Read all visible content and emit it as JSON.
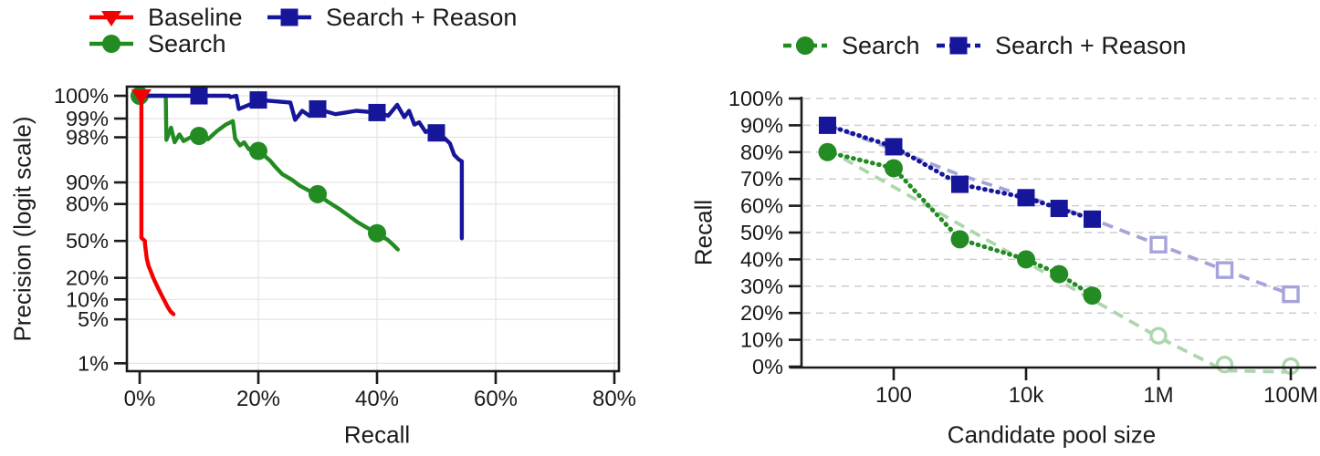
{
  "colors": {
    "baseline_red": "#f40000",
    "search_green": "#228b22",
    "reason_navy": "#16169a",
    "faded_navy": "#a4a4da",
    "faded_green": "#aed6ae",
    "grid_solid": "#e4e4e4",
    "grid_dashed": "#cdcdcd",
    "ink": "#1a1a1a"
  },
  "chart_data": [
    {
      "id": "precision-recall",
      "type": "line",
      "title": "",
      "xlabel": "Recall",
      "ylabel": "Precision (logit scale)",
      "x_scale": "linear",
      "y_scale": "logit",
      "xlim": [
        -2,
        81
      ],
      "ylim_percent": [
        1,
        100
      ],
      "grid": true,
      "x_ticks": [
        {
          "v": 0,
          "label": "0%"
        },
        {
          "v": 20,
          "label": "20%"
        },
        {
          "v": 40,
          "label": "40%"
        },
        {
          "v": 60,
          "label": "60%"
        },
        {
          "v": 80,
          "label": "80%"
        }
      ],
      "y_ticks": [
        {
          "v": 100,
          "label": "100%"
        },
        {
          "v": 99,
          "label": "99%"
        },
        {
          "v": 98,
          "label": "98%"
        },
        {
          "v": 90,
          "label": "90%"
        },
        {
          "v": 80,
          "label": "80%"
        },
        {
          "v": 50,
          "label": "50%"
        },
        {
          "v": 20,
          "label": "20%"
        },
        {
          "v": 10,
          "label": "10%"
        },
        {
          "v": 5,
          "label": "5%"
        },
        {
          "v": 1,
          "label": "1%"
        }
      ],
      "legend": {
        "position": "upper-left-outside",
        "entries": [
          {
            "label": "Baseline",
            "color": "baseline_red",
            "marker": "triangle-down",
            "line": "solid"
          },
          {
            "label": "Search + Reason",
            "color": "reason_navy",
            "marker": "square",
            "line": "solid"
          },
          {
            "label": "Search",
            "color": "search_green",
            "marker": "circle",
            "line": "solid"
          }
        ]
      },
      "series": [
        {
          "name": "Search",
          "color": "search_green",
          "line": "solid",
          "marker": "circle",
          "points": [
            [
              0,
              100
            ],
            [
              4.4,
              100
            ],
            [
              4.5,
              97.8
            ],
            [
              5.3,
              98.6
            ],
            [
              5.9,
              97.6
            ],
            [
              6.7,
              98.2
            ],
            [
              7.4,
              97.7
            ],
            [
              8.6,
              98.0
            ],
            [
              10,
              98.1
            ],
            [
              11.5,
              97.85
            ],
            [
              13,
              98.4
            ],
            [
              14.5,
              98.75
            ],
            [
              15.7,
              98.9
            ],
            [
              16.1,
              97.9
            ],
            [
              16.9,
              97.3
            ],
            [
              17.6,
              97.6
            ],
            [
              18.4,
              96.9
            ],
            [
              19.2,
              97.1
            ],
            [
              20,
              96.7
            ],
            [
              21,
              96.1
            ],
            [
              22,
              95.3
            ],
            [
              22.7,
              94.4
            ],
            [
              24,
              92.5
            ],
            [
              25.7,
              90.8
            ],
            [
              27,
              88.8
            ],
            [
              28.5,
              86.9
            ],
            [
              30,
              85.3
            ],
            [
              31.5,
              81.8
            ],
            [
              33.4,
              77.5
            ],
            [
              35,
              72.8
            ],
            [
              36.6,
              67.3
            ],
            [
              38.2,
              62.5
            ],
            [
              40,
              57.2
            ],
            [
              41.8,
              51
            ],
            [
              42.8,
              46
            ],
            [
              43.5,
              42
            ]
          ],
          "marker_points": [
            [
              0,
              100
            ],
            [
              10,
              98.1
            ],
            [
              20,
              96.7
            ],
            [
              30,
              85.3
            ],
            [
              40,
              57.2
            ]
          ]
        },
        {
          "name": "Search + Reason",
          "color": "reason_navy",
          "line": "solid",
          "marker": "square",
          "points": [
            [
              0,
              100
            ],
            [
              15.1,
              100
            ],
            [
              15.3,
              99.55
            ],
            [
              16.3,
              99.65
            ],
            [
              16.7,
              99.3
            ],
            [
              19.4,
              99.45
            ],
            [
              20,
              99.5
            ],
            [
              25.4,
              99.45
            ],
            [
              26.2,
              98.95
            ],
            [
              27.4,
              99.25
            ],
            [
              28.6,
              99.1
            ],
            [
              30,
              99.3
            ],
            [
              33,
              99.15
            ],
            [
              36.5,
              99.25
            ],
            [
              40,
              99.2
            ],
            [
              41.9,
              99.1
            ],
            [
              43.4,
              99.4
            ],
            [
              44.6,
              99.05
            ],
            [
              45.4,
              99.25
            ],
            [
              46.3,
              98.75
            ],
            [
              47.1,
              98.85
            ],
            [
              48.2,
              98.35
            ],
            [
              49,
              98.5
            ],
            [
              50,
              98.3
            ],
            [
              51.2,
              98.0
            ],
            [
              52.3,
              97.5
            ],
            [
              53,
              96.2
            ],
            [
              53.8,
              95.5
            ],
            [
              54.3,
              95.2
            ],
            [
              54.3,
              52.5
            ]
          ],
          "marker_points": [
            [
              10,
              100
            ],
            [
              20,
              99.5
            ],
            [
              30,
              99.3
            ],
            [
              40,
              99.2
            ],
            [
              50,
              98.3
            ]
          ]
        },
        {
          "name": "Baseline",
          "color": "baseline_red",
          "line": "solid",
          "marker": "triangle-down",
          "points": [
            [
              0.3,
              100
            ],
            [
              0.3,
              53
            ],
            [
              0.9,
              50
            ],
            [
              0.9,
              47
            ],
            [
              1.2,
              34
            ],
            [
              1.5,
              28
            ],
            [
              1.9,
              24
            ],
            [
              2.3,
              20
            ],
            [
              2.7,
              17
            ],
            [
              3.2,
              14
            ],
            [
              3.7,
              11.5
            ],
            [
              4.2,
              9.5
            ],
            [
              4.7,
              7.8
            ],
            [
              5.2,
              6.6
            ],
            [
              5.7,
              6
            ]
          ],
          "marker_points": [
            [
              0.3,
              100
            ]
          ]
        }
      ]
    },
    {
      "id": "recall-vs-pool-size",
      "type": "line",
      "title": "",
      "xlabel": "Candidate pool size",
      "ylabel": "Recall",
      "x_scale": "log",
      "y_scale": "linear",
      "xlim_log10": [
        0.45,
        8.4
      ],
      "ylim_percent": [
        0,
        100
      ],
      "grid": "horizontal-dashed",
      "x_ticks": [
        {
          "v": 100,
          "label": "100"
        },
        {
          "v": 10000,
          "label": "10k"
        },
        {
          "v": 1000000,
          "label": "1M"
        },
        {
          "v": 100000000,
          "label": "100M"
        }
      ],
      "y_ticks": [
        {
          "v": 0,
          "label": "0%"
        },
        {
          "v": 10,
          "label": "10%"
        },
        {
          "v": 20,
          "label": "20%"
        },
        {
          "v": 30,
          "label": "30%"
        },
        {
          "v": 40,
          "label": "40%"
        },
        {
          "v": 50,
          "label": "50%"
        },
        {
          "v": 60,
          "label": "60%"
        },
        {
          "v": 70,
          "label": "70%"
        },
        {
          "v": 80,
          "label": "80%"
        },
        {
          "v": 90,
          "label": "90%"
        },
        {
          "v": 100,
          "label": "100%"
        }
      ],
      "legend": {
        "position": "top-center-outside",
        "entries": [
          {
            "label": "Search",
            "color": "search_green",
            "marker": "circle",
            "line": "dashed"
          },
          {
            "label": "Search + Reason",
            "color": "reason_navy",
            "marker": "square",
            "line": "dashed"
          }
        ]
      },
      "series": [
        {
          "name": "Search + Reason (extrapolated)",
          "color": "faded_navy",
          "line": "dashed",
          "marker": "open-square",
          "points": [
            [
              10,
              90
            ],
            [
              100,
              81
            ],
            [
              1000,
              71.5
            ],
            [
              10000,
              63.5
            ],
            [
              31600,
              59.5
            ],
            [
              100000,
              55
            ],
            [
              1000000,
              45.5
            ],
            [
              10000000,
              36
            ],
            [
              100000000,
              27
            ]
          ],
          "marker_points": [
            [
              1000000,
              45.5
            ],
            [
              10000000,
              36
            ],
            [
              100000000,
              27
            ]
          ]
        },
        {
          "name": "Search (extrapolated)",
          "color": "faded_green",
          "line": "dashed",
          "marker": "open-circle",
          "points": [
            [
              10,
              81
            ],
            [
              100,
              67
            ],
            [
              1000,
              53
            ],
            [
              10000,
              39
            ],
            [
              100000,
              25
            ],
            [
              1000000,
              11
            ],
            [
              10000000,
              -1.5
            ],
            [
              100000000,
              -2
            ]
          ],
          "marker_points": [
            [
              1000000,
              11.5
            ],
            [
              10000000,
              0.8
            ],
            [
              100000000,
              0.2
            ]
          ]
        },
        {
          "name": "Search",
          "color": "search_green",
          "line": "dotted",
          "marker": "circle",
          "points": [
            [
              10,
              80
            ],
            [
              100,
              74
            ],
            [
              1000,
              47.5
            ],
            [
              10000,
              40
            ],
            [
              31600,
              34.5
            ],
            [
              100000,
              26.5
            ]
          ],
          "marker_points": [
            [
              10,
              80
            ],
            [
              100,
              74
            ],
            [
              1000,
              47.5
            ],
            [
              10000,
              40
            ],
            [
              31600,
              34.5
            ],
            [
              100000,
              26.5
            ]
          ]
        },
        {
          "name": "Search + Reason",
          "color": "reason_navy",
          "line": "dotted",
          "marker": "square",
          "points": [
            [
              10,
              90
            ],
            [
              100,
              82
            ],
            [
              1000,
              68
            ],
            [
              10000,
              63
            ],
            [
              31600,
              59
            ],
            [
              100000,
              55
            ]
          ],
          "marker_points": [
            [
              10,
              90
            ],
            [
              100,
              82
            ],
            [
              1000,
              68
            ],
            [
              10000,
              63
            ],
            [
              31600,
              59
            ],
            [
              100000,
              55
            ]
          ]
        }
      ]
    }
  ]
}
